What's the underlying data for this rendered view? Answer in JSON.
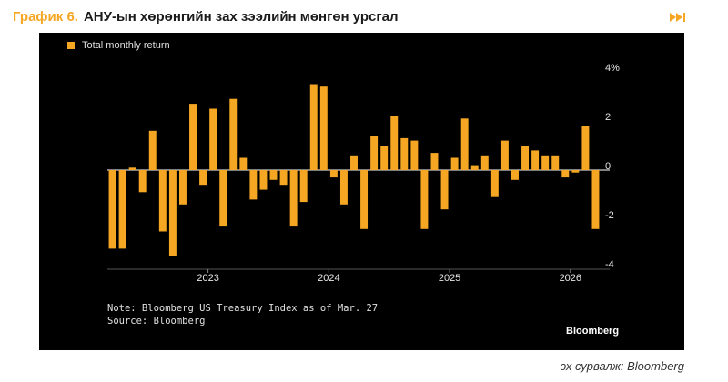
{
  "header": {
    "figure_number": "График 6.",
    "title": "АНУ-ын хөрөнгийн зах зээлийн мөнгөн урсгал"
  },
  "chart_data": {
    "type": "bar",
    "legend": [
      "Total monthly return"
    ],
    "series": [
      {
        "name": "Total monthly return",
        "color": "#f5a623",
        "values": [
          -3.2,
          -3.2,
          0.1,
          -0.9,
          1.6,
          -2.5,
          -3.5,
          -1.4,
          2.7,
          -0.6,
          2.5,
          -2.3,
          2.9,
          0.5,
          -1.2,
          -0.8,
          -0.4,
          -0.6,
          -2.3,
          -1.3,
          3.5,
          3.4,
          -0.3,
          -1.4,
          0.6,
          -2.4,
          1.4,
          1.0,
          2.2,
          1.3,
          1.2,
          -2.4,
          0.7,
          -1.6,
          0.5,
          2.1,
          0.2,
          0.6,
          -1.1,
          1.2,
          -0.4,
          1.0,
          0.8,
          0.6,
          0.6,
          -0.3,
          -0.1,
          1.8,
          -2.4
        ]
      }
    ],
    "x_year_labels": [
      {
        "label": "2023",
        "index": 9.5
      },
      {
        "label": "2024",
        "index": 21.5
      },
      {
        "label": "2025",
        "index": 33.5
      },
      {
        "label": "2026",
        "index": 45.5
      }
    ],
    "y_ticks": [
      {
        "value": 4,
        "label": "4%"
      },
      {
        "value": 2,
        "label": "2"
      },
      {
        "value": 0,
        "label": "0"
      },
      {
        "value": -2,
        "label": "-2"
      },
      {
        "value": -4,
        "label": "-4"
      }
    ],
    "ylim": [
      -4,
      4
    ],
    "axis_position": "right",
    "notes": [
      "Note: Bloomberg US Treasury Index as of Mar. 27",
      "Source: Bloomberg"
    ],
    "brand": "Bloomberg"
  },
  "footer": {
    "source": "эх сурвалж: Bloomberg"
  },
  "colors": {
    "accent": "#f5a623",
    "background": "#000000"
  }
}
